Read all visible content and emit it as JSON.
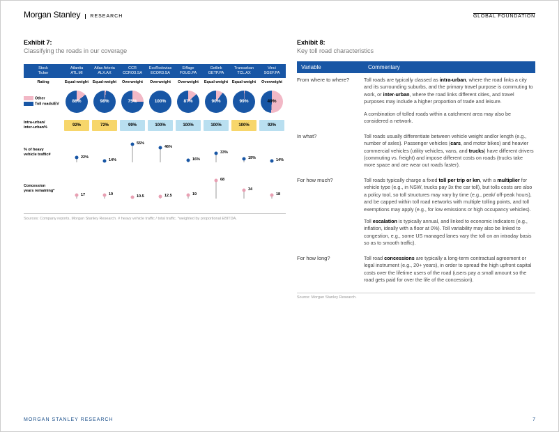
{
  "header": {
    "brand": "Morgan Stanley",
    "research": "RESEARCH",
    "global_foundation": "GLOBAL FOUNDATION"
  },
  "footer": {
    "left": "MORGAN STANLEY RESEARCH",
    "page": "7"
  },
  "colors": {
    "ms_blue": "#1856a5",
    "pink": "#f2b8c6",
    "pink_dot": "#e8a0b3",
    "yellow": "#f7d66b",
    "light_blue": "#b9dff0",
    "grey_text": "#999999"
  },
  "exhibit7": {
    "title": "Exhibit 7:",
    "subtitle": "Classifying the roads in our coverage",
    "header_row": {
      "col_labels": [
        "Stock\nTicker"
      ],
      "companies": [
        {
          "name": "Atlantia",
          "ticker": "ATL.MI",
          "rating": "Equal-weight"
        },
        {
          "name": "Atlas Arteria",
          "ticker": "ALX.AX",
          "rating": "Equal-weight"
        },
        {
          "name": "CCR",
          "ticker": "CCRO3.SA",
          "rating": "Overweight"
        },
        {
          "name": "EcoRodovias",
          "ticker": "ECOR3.SA",
          "rating": "Overweight"
        },
        {
          "name": "Eiffage",
          "ticker": "FOUG.PA",
          "rating": "Overweight"
        },
        {
          "name": "Getlink",
          "ticker": "GETP.PA",
          "rating": "Equal-weight"
        },
        {
          "name": "Transurban",
          "ticker": "TCL.AX",
          "rating": "Equal-weight"
        },
        {
          "name": "Vinci",
          "ticker": "SGEF.PA",
          "rating": "Overweight"
        }
      ],
      "rating_label": "Rating"
    },
    "pies": {
      "legend": {
        "other": "Other",
        "toll": "Toll roads/EV"
      },
      "values": [
        86,
        98,
        75,
        100,
        87,
        90,
        99,
        49
      ],
      "fg_color": "#1856a5",
      "bg_color": "#f2b8c6"
    },
    "urban": {
      "label": "Intra-urban/\ninter-urban%",
      "values": [
        92,
        72,
        99,
        100,
        100,
        100,
        100,
        92
      ],
      "colors": [
        "#f7d66b",
        "#f7d66b",
        "#b9dff0",
        "#b9dff0",
        "#b9dff0",
        "#b9dff0",
        "#f7d66b",
        "#b9dff0"
      ]
    },
    "heavy": {
      "label": "% of heavy\nvehicle traffic#",
      "values": [
        22,
        14,
        55,
        46,
        16,
        33,
        19,
        14
      ],
      "min": 10,
      "max": 60,
      "color": "#1856a5"
    },
    "concession": {
      "label": "Concession\nyears remaining*",
      "values": [
        17,
        19,
        10.5,
        12.5,
        19,
        68,
        34,
        18
      ],
      "min": 5,
      "max": 75,
      "color": "#e8a0b3"
    },
    "source": "Sources: Company reports, Morgan Stanley Research. # heavy vehicle traffic / total traffic. *weighted by proportional EBITDA."
  },
  "exhibit8": {
    "title": "Exhibit 8:",
    "subtitle": "Key toll road characteristics",
    "head": {
      "variable": "Variable",
      "commentary": "Commentary"
    },
    "rows": [
      {
        "var": "From where to where?",
        "com": [
          "Toll roads are typically classed as <b>intra-urban</b>, where the road links a city and its surrounding suburbs, and the primary travel purpose is commuting to work, or <b>inter-urban</b>, where the road links different cities, and travel purposes may include a higher proportion of trade and leisure.",
          "A combination of tolled roads within a catchment area may also be considered a network."
        ]
      },
      {
        "var": "In what?",
        "com": [
          "Toll roads usually differentiate between vehicle weight and/or length (e.g., number of axles). Passenger vehicles (<b>cars</b>, and motor bikes) and heavier commercial vehicles (utility vehicles, vans, and <b>trucks</b>) have different drivers (commuting vs. freight) and impose different costs on roads (trucks take more space and are wear out roads faster)."
        ]
      },
      {
        "var": "For how much?",
        "com": [
          "Toll roads typically charge a fixed <b>toll per trip or km</b>, with a <b>multiplier</b> for vehicle type (e.g., in NSW, trucks pay 3x the car toll), but tolls costs are also a policy tool, so toll structures may vary by time (e.g., peak/ off-peak hours), and be capped within toll road networks with multiple tolling points, and toll exemptions may apply (e.g., for low emissions or high occupancy vehicles).",
          "Toll <b>escalation</b> is typically annual, and linked to economic indicators (e.g., inflation, ideally with a floor at 0%). Toll variability may also be linked to congestion, e.g., some US managed lanes vary the toll on an intraday basis so as to smooth traffic)."
        ]
      },
      {
        "var": "For how long?",
        "com": [
          "Toll road <b>concessions</b> are typically a long-term contractual agreement or legal instrument (e.g., 20+ years), in order to spread the high upfront capital costs over the lifetime users of the road (users pay a small amount so the road gets paid for over the life of the concession)."
        ]
      }
    ],
    "source": "Source: Morgan Stanley Research."
  }
}
